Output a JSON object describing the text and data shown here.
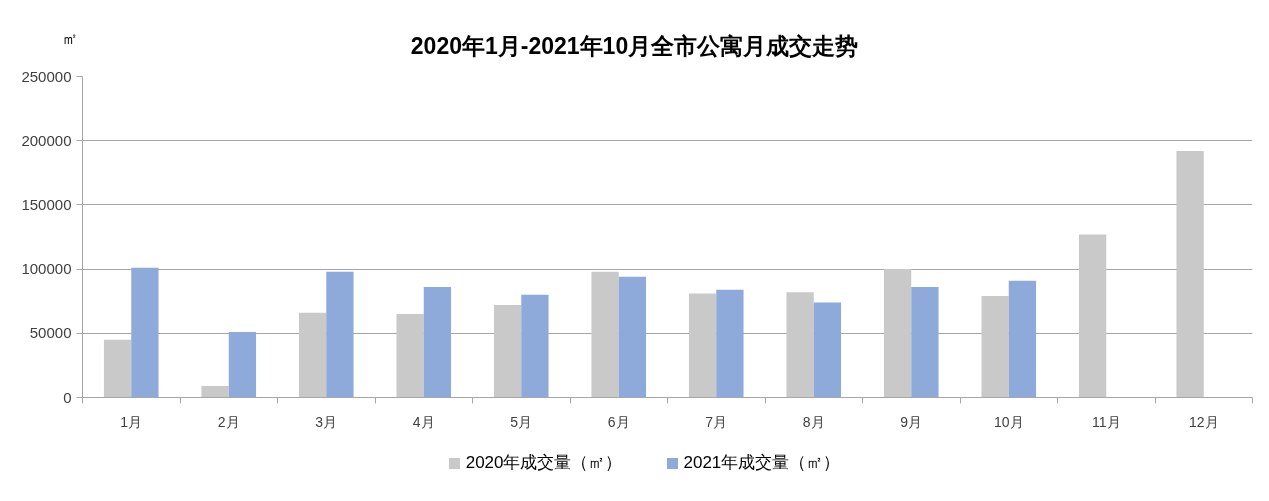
{
  "chart_data": {
    "type": "bar",
    "title": "2020年1月-2021年10月全市公寓月成交走势",
    "ylabel": "㎡",
    "categories": [
      "1月",
      "2月",
      "3月",
      "4月",
      "5月",
      "6月",
      "7月",
      "8月",
      "9月",
      "10月",
      "11月",
      "12月"
    ],
    "series": [
      {
        "name": "2020年成交量（㎡）",
        "color": "#c9c9c9",
        "values": [
          45000,
          9000,
          66000,
          65000,
          72000,
          98000,
          81000,
          82000,
          100000,
          79000,
          127000,
          192000
        ]
      },
      {
        "name": "2021年成交量（㎡）",
        "color": "#8eaadb",
        "values": [
          101000,
          51000,
          98000,
          86000,
          80000,
          94000,
          84000,
          74000,
          86000,
          91000,
          null,
          null
        ]
      }
    ],
    "ylim": [
      0,
      250000
    ],
    "yticks": [
      0,
      50000,
      100000,
      150000,
      200000,
      250000
    ],
    "grid": "y",
    "legend": "bottom"
  }
}
